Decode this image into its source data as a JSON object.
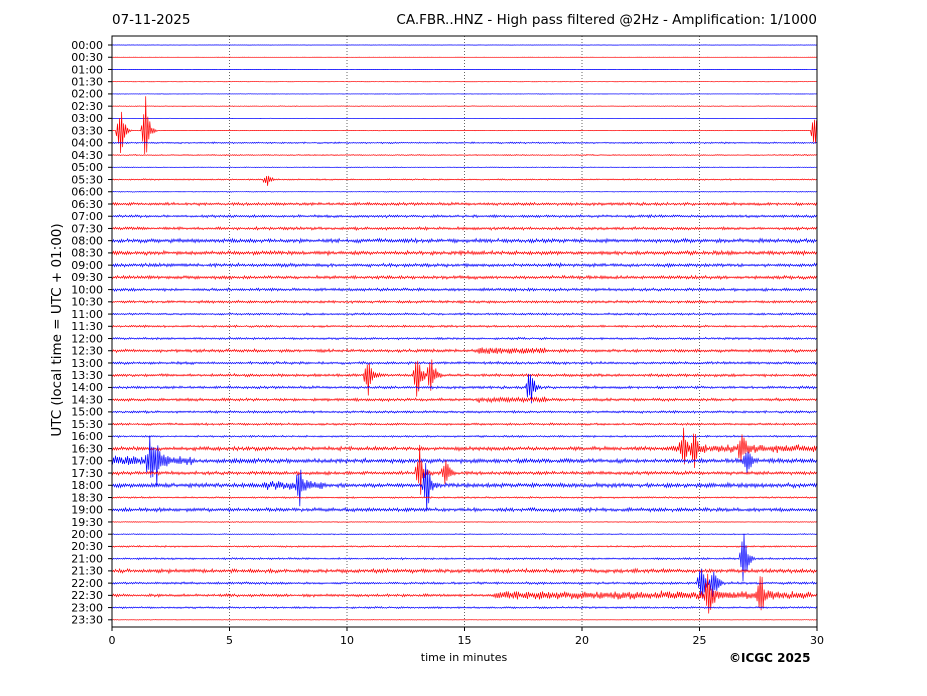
{
  "header": {
    "date": "07-11-2025",
    "title": "CA.FBR..HNZ - High pass filtered @2Hz - Amplification: 1/1000"
  },
  "footer": {
    "copyright": "©ICGC 2025"
  },
  "chart_data": {
    "type": "line",
    "title": "CA.FBR..HNZ - High pass filtered @2Hz - Amplification: 1/1000",
    "xlabel": "time in minutes",
    "ylabel": "UTC (local time = UTC + 01:00)",
    "xlim": [
      0,
      30
    ],
    "xticks": [
      0,
      5,
      10,
      15,
      20,
      25,
      30
    ],
    "grid": "vertical dotted at 5-minute intervals",
    "colors": {
      "even_rows": "#0000ff",
      "odd_rows": "#ff0000"
    },
    "rows": [
      "00:00",
      "00:30",
      "01:00",
      "01:30",
      "02:00",
      "02:30",
      "03:00",
      "03:30",
      "04:00",
      "04:30",
      "05:00",
      "05:30",
      "06:00",
      "06:30",
      "07:00",
      "07:30",
      "08:00",
      "08:30",
      "09:00",
      "09:30",
      "10:00",
      "10:30",
      "11:00",
      "11:30",
      "12:00",
      "12:30",
      "13:00",
      "13:30",
      "14:00",
      "14:30",
      "15:00",
      "15:30",
      "16:00",
      "16:30",
      "17:00",
      "17:30",
      "18:00",
      "18:30",
      "19:00",
      "19:30",
      "20:00",
      "20:30",
      "21:00",
      "21:30",
      "22:00",
      "22:30",
      "23:00",
      "23:30"
    ],
    "activity": [
      0.02,
      0.02,
      0.02,
      0.02,
      0.03,
      0.05,
      0.02,
      0.03,
      0.12,
      0.08,
      0.06,
      0.1,
      0.06,
      0.22,
      0.2,
      0.22,
      0.3,
      0.3,
      0.26,
      0.26,
      0.22,
      0.2,
      0.16,
      0.16,
      0.16,
      0.24,
      0.2,
      0.22,
      0.2,
      0.22,
      0.18,
      0.16,
      0.14,
      0.3,
      0.34,
      0.26,
      0.34,
      0.12,
      0.28,
      0.06,
      0.08,
      0.12,
      0.14,
      0.3,
      0.18,
      0.22,
      0.14,
      0.04
    ],
    "events": [
      {
        "row": "03:30",
        "t": 0.35,
        "amp": 1.0
      },
      {
        "row": "03:30",
        "t": 1.45,
        "amp": 1.0
      },
      {
        "row": "03:30",
        "t": 29.95,
        "amp": 0.9
      },
      {
        "row": "05:30",
        "t": 6.6,
        "amp": 0.2
      },
      {
        "row": "13:30",
        "t": 10.9,
        "amp": 0.7
      },
      {
        "row": "13:30",
        "t": 13.0,
        "amp": 0.8
      },
      {
        "row": "13:30",
        "t": 13.6,
        "amp": 0.7
      },
      {
        "row": "16:30",
        "t": 24.3,
        "amp": 0.55
      },
      {
        "row": "16:30",
        "t": 24.8,
        "amp": 0.55
      },
      {
        "row": "16:30",
        "t": 26.8,
        "amp": 0.5
      },
      {
        "row": "17:00",
        "t": 1.6,
        "amp": 0.7
      },
      {
        "row": "17:00",
        "t": 1.9,
        "amp": 0.6
      },
      {
        "row": "17:00",
        "t": 27.0,
        "amp": 0.45
      },
      {
        "row": "17:30",
        "t": 13.1,
        "amp": 0.9
      },
      {
        "row": "17:30",
        "t": 14.2,
        "amp": 0.6
      },
      {
        "row": "18:00",
        "t": 8.0,
        "amp": 0.55
      },
      {
        "row": "18:00",
        "t": 13.4,
        "amp": 0.9
      },
      {
        "row": "21:00",
        "t": 26.9,
        "amp": 1.0
      },
      {
        "row": "22:00",
        "t": 25.1,
        "amp": 0.7
      },
      {
        "row": "22:00",
        "t": 25.6,
        "amp": 0.6
      },
      {
        "row": "22:30",
        "t": 25.4,
        "amp": 0.8
      },
      {
        "row": "22:30",
        "t": 27.6,
        "amp": 0.6
      },
      {
        "row": "14:00",
        "t": 17.8,
        "amp": 0.7
      }
    ],
    "bursts": [
      {
        "row": "17:00",
        "start": 0.0,
        "end": 3.5,
        "amp": 0.7
      },
      {
        "row": "16:30",
        "start": 23.8,
        "end": 30.0,
        "amp": 0.4
      },
      {
        "row": "18:00",
        "start": 6.5,
        "end": 9.0,
        "amp": 0.5
      },
      {
        "row": "22:30",
        "start": 16.3,
        "end": 29.8,
        "amp": 0.55
      },
      {
        "row": "12:30",
        "start": 15.5,
        "end": 18.5,
        "amp": 0.35
      },
      {
        "row": "14:30",
        "start": 15.5,
        "end": 18.5,
        "amp": 0.3
      }
    ]
  }
}
